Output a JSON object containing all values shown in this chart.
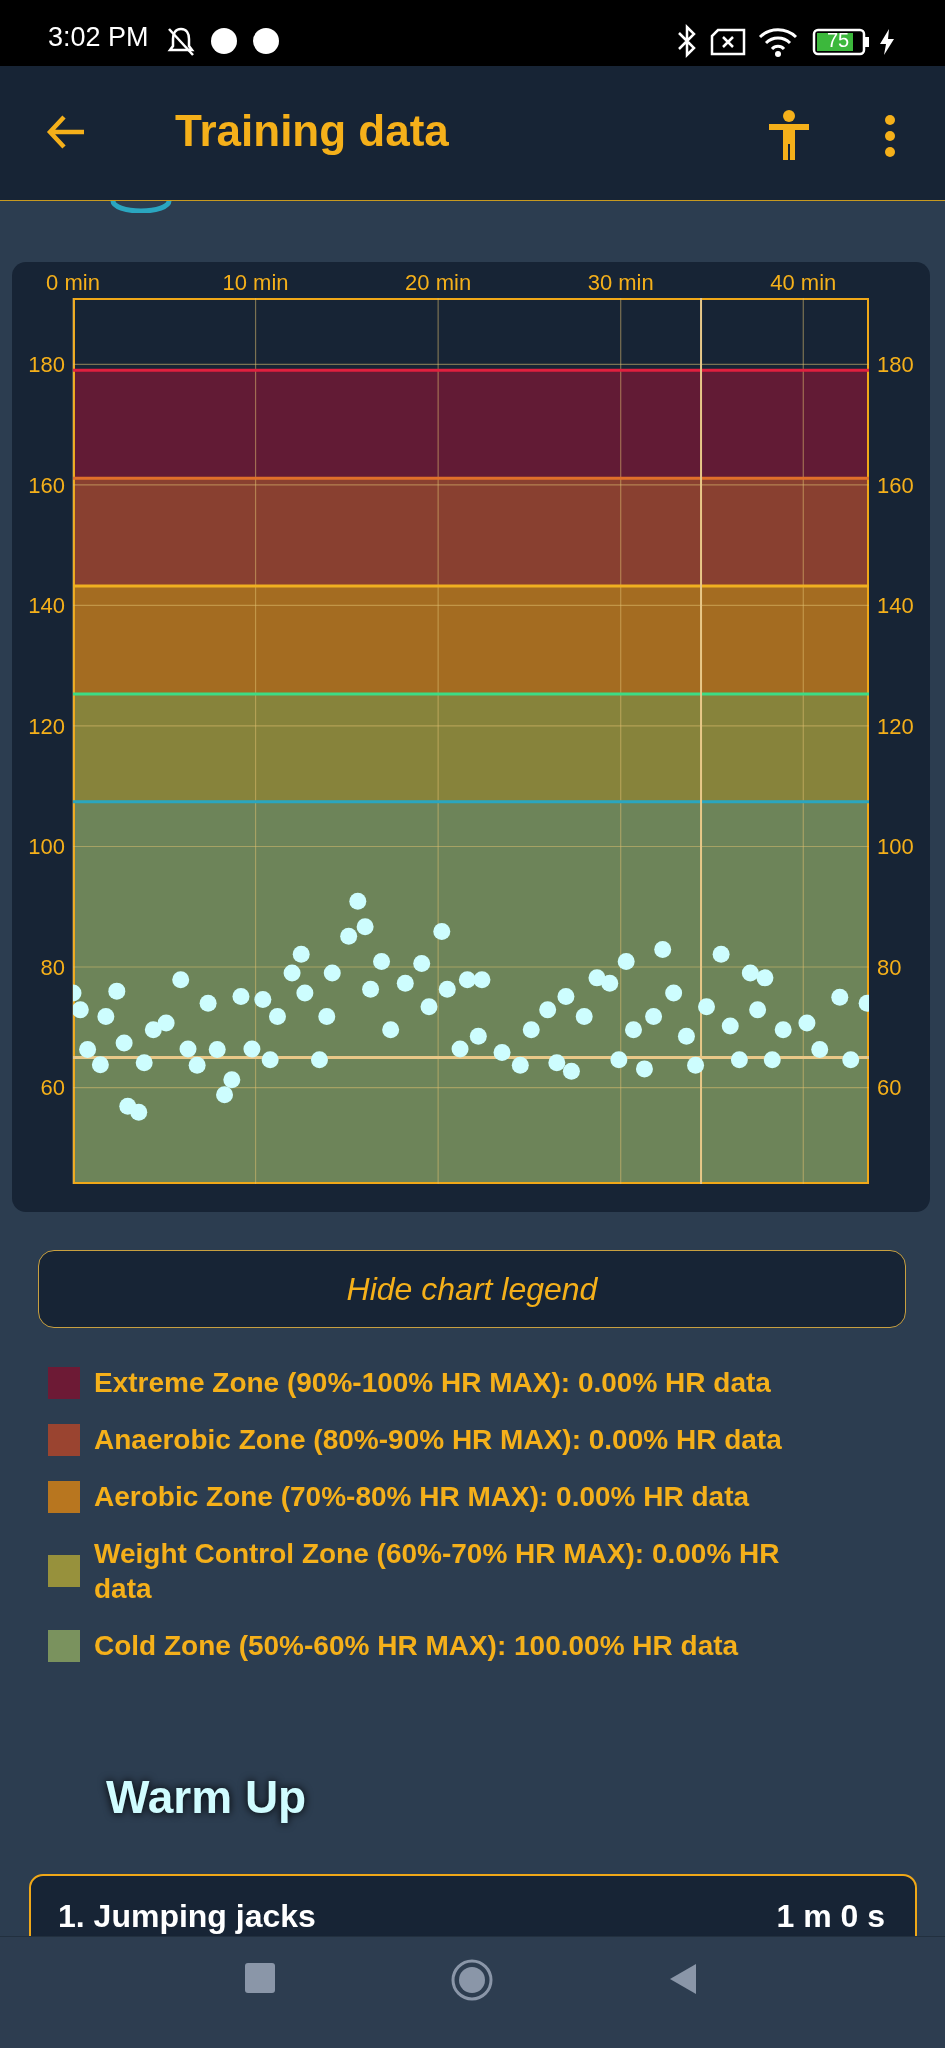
{
  "chart_data": {
    "type": "scatter",
    "title": "Training data",
    "xlim": [
      0,
      43.6
    ],
    "xticks": [
      {
        "value": 0,
        "label": "0 min"
      },
      {
        "value": 10,
        "label": "10 min"
      },
      {
        "value": 20,
        "label": "20 min"
      },
      {
        "value": 30,
        "label": "30 min"
      },
      {
        "value": 40,
        "label": "40 min"
      }
    ],
    "ylim": [
      44,
      191
    ],
    "yticks": [
      60,
      80,
      100,
      120,
      140,
      160,
      180
    ],
    "y2lim": [
      44,
      191
    ],
    "y2ticks": [
      60,
      80,
      100,
      120,
      140,
      160,
      180
    ],
    "grid": true,
    "marker": "circle",
    "legend": "bottom",
    "bands": [
      {
        "axis": "y",
        "from": 161.1,
        "to": 179,
        "label": "Extreme Zone (90%-100% HR MAX): 0.00% HR data",
        "color": "#6d1a35"
      },
      {
        "axis": "y",
        "from": 143.2,
        "to": 161.1,
        "label": "Anaerobic Zone (80%-90% HR MAX): 0.00% HR data",
        "color": "#9a4430"
      },
      {
        "axis": "y",
        "from": 125.3,
        "to": 143.2,
        "label": "Aerobic Zone (70%-80% HR MAX): 0.00% HR data",
        "color": "#b8761f"
      },
      {
        "axis": "y",
        "from": 107.4,
        "to": 125.3,
        "label": "Weight Control Zone (60%-70% HR MAX): 0.00% HR data",
        "color": "#97913c"
      },
      {
        "axis": "y",
        "from": 44,
        "to": 107.4,
        "label": "Cold Zone (50%-60% HR MAX): 100.00% HR data",
        "color": "#7a925e"
      }
    ],
    "ref_lines": [
      {
        "axis": "y",
        "value": 179,
        "color": "#e0203f"
      },
      {
        "axis": "y",
        "value": 161.1,
        "color": "#e0702a"
      },
      {
        "axis": "y",
        "value": 143.2,
        "color": "#f0b020"
      },
      {
        "axis": "y",
        "value": 125.3,
        "color": "#3ddc84"
      },
      {
        "axis": "y",
        "value": 107.4,
        "color": "#2aa6c0"
      },
      {
        "axis": "y",
        "value": 65,
        "color": "#e8c888"
      },
      {
        "axis": "x",
        "value": 34.4,
        "color": "#e8c888"
      }
    ],
    "annotations": [
      "3:02 PM",
      "75",
      "Hide chart legend",
      "Warm Up",
      "1. Jumping jacks",
      "1 m 0 s"
    ],
    "series": [
      {
        "color": "#cdfdfe",
        "x": [
          0,
          0.4,
          0.8,
          1.5,
          1.8,
          2.4,
          2.8,
          3,
          3.6,
          3.9,
          4.4,
          5.1,
          5.9,
          6.3,
          6.8,
          7.4,
          7.9,
          8.3,
          8.7,
          9.2,
          9.8,
          10.4,
          10.8,
          11.2,
          12,
          12.5,
          12.7,
          13.5,
          13.9,
          14.2,
          15.1,
          15.6,
          16,
          16.3,
          16.9,
          17.4,
          18.2,
          19.1,
          19.5,
          20.2,
          20.5,
          21.2,
          21.6,
          22.2,
          22.4,
          23.5,
          24.5,
          25.1,
          26,
          26.5,
          27,
          27.3,
          28,
          28.7,
          29.4,
          29.9,
          30.3,
          30.7,
          31.3,
          31.8,
          32.3,
          32.9,
          33.6,
          34.1,
          34.7,
          35.5,
          36,
          36.5,
          37.1,
          37.5,
          37.9,
          38.3,
          38.9,
          40.2,
          40.9,
          42,
          42.6,
          43.5
        ],
        "values": [
          75.7,
          72.9,
          66.3,
          63.8,
          71.8,
          76,
          67.4,
          56.9,
          55.9,
          64.1,
          69.6,
          70.7,
          77.9,
          66.4,
          63.7,
          74,
          66.3,
          58.8,
          61.3,
          75.1,
          66.4,
          74.6,
          64.6,
          71.8,
          79,
          82.1,
          75.7,
          64.6,
          71.8,
          79,
          85.1,
          90.9,
          86.7,
          76.3,
          80.9,
          69.6,
          77.3,
          80.6,
          73.4,
          85.9,
          76.3,
          66.4,
          77.9,
          68.5,
          77.9,
          65.8,
          63.7,
          69.6,
          72.9,
          64.1,
          75.1,
          62.7,
          71.8,
          78.2,
          77.3,
          64.6,
          80.9,
          69.6,
          63.1,
          71.8,
          82.9,
          75.7,
          68.5,
          63.7,
          73.4,
          82.1,
          70.2,
          64.6,
          79,
          72.9,
          78.2,
          64.6,
          69.6,
          70.7,
          66.3,
          75,
          64.6,
          74
        ]
      }
    ]
  }
}
